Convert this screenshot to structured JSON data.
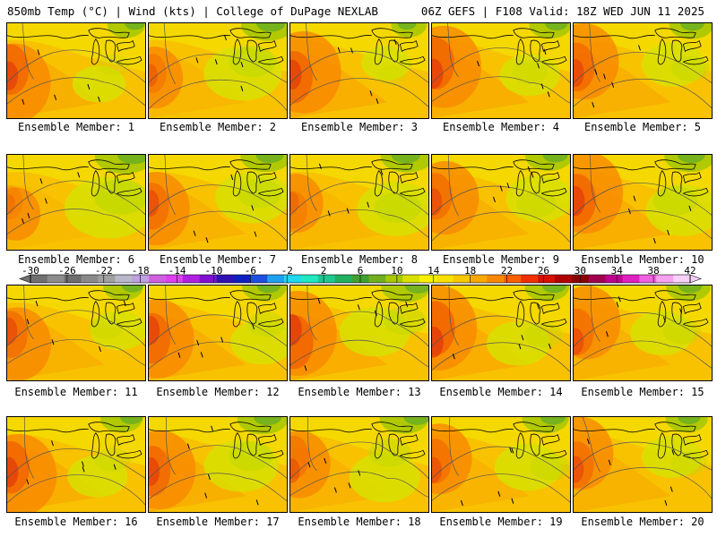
{
  "header": {
    "left": "850mb Temp (°C) | Wind (kts) | College of DuPage NEXLAB",
    "right": "06Z GEFS | F108 Valid: 18Z WED JUN 11 2025"
  },
  "members": [
    {
      "label": "Ensemble Member: 1",
      "warmth": 0.7,
      "coolness": 0.25
    },
    {
      "label": "Ensemble Member: 2",
      "warmth": 0.4,
      "coolness": 0.6
    },
    {
      "label": "Ensemble Member: 3",
      "warmth": 0.75,
      "coolness": 0.2
    },
    {
      "label": "Ensemble Member: 4",
      "warmth": 0.75,
      "coolness": 0.35
    },
    {
      "label": "Ensemble Member: 5",
      "warmth": 0.65,
      "coolness": 0.4
    },
    {
      "label": "Ensemble Member: 6",
      "warmth": 0.25,
      "coolness": 0.75
    },
    {
      "label": "Ensemble Member: 7",
      "warmth": 0.6,
      "coolness": 0.55
    },
    {
      "label": "Ensemble Member: 8",
      "warmth": 0.35,
      "coolness": 0.6
    },
    {
      "label": "Ensemble Member: 9",
      "warmth": 0.6,
      "coolness": 0.45
    },
    {
      "label": "Ensemble Member: 10",
      "warmth": 0.75,
      "coolness": 0.55
    },
    {
      "label": "Ensemble Member: 11",
      "warmth": 0.6,
      "coolness": 0.3
    },
    {
      "label": "Ensemble Member: 12",
      "warmth": 0.7,
      "coolness": 0.4
    },
    {
      "label": "Ensemble Member: 13",
      "warmth": 0.8,
      "coolness": 0.5
    },
    {
      "label": "Ensemble Member: 14",
      "warmth": 0.8,
      "coolness": 0.4
    },
    {
      "label": "Ensemble Member: 15",
      "warmth": 0.6,
      "coolness": 0.4
    },
    {
      "label": "Ensemble Member: 16",
      "warmth": 0.75,
      "coolness": 0.35
    },
    {
      "label": "Ensemble Member: 17",
      "warmth": 0.7,
      "coolness": 0.55
    },
    {
      "label": "Ensemble Member: 18",
      "warmth": 0.5,
      "coolness": 0.5
    },
    {
      "label": "Ensemble Member: 19",
      "warmth": 0.55,
      "coolness": 0.45
    },
    {
      "label": "Ensemble Member: 20",
      "warmth": 0.6,
      "coolness": 0.35
    }
  ],
  "colorbar": {
    "ticks": [
      "-30",
      "-26",
      "-22",
      "-18",
      "-14",
      "-10",
      "-6",
      "-2",
      "2",
      "6",
      "10",
      "14",
      "18",
      "22",
      "26",
      "30",
      "34",
      "38",
      "42"
    ],
    "colors": [
      "#707070",
      "#8c8c8c",
      "#6e6e6e",
      "#8a8a8a",
      "#a0a0a0",
      "#b8b8c8",
      "#c0a0e0",
      "#d060e0",
      "#e040f0",
      "#b020e0",
      "#8010d0",
      "#3010b0",
      "#1020c0",
      "#2050e0",
      "#20a0f0",
      "#20d8f0",
      "#20e8c0",
      "#20c890",
      "#20b060",
      "#40a030",
      "#70b020",
      "#a8c800",
      "#d8e000",
      "#f8f000",
      "#f8e000",
      "#f8c800",
      "#f8a800",
      "#f88800",
      "#f86000",
      "#f03000",
      "#d81000",
      "#b00000",
      "#8a0000",
      "#a00050",
      "#c00090",
      "#e020c0",
      "#f060e0",
      "#f8a0f0",
      "#f8d0f8"
    ]
  }
}
